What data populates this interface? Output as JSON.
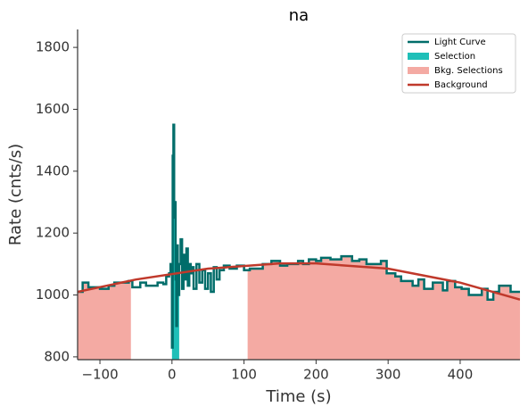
{
  "chart_data": {
    "type": "line",
    "title": "na",
    "xlabel": "Time (s)",
    "ylabel": "Rate (cnts/s)",
    "xlim": [
      -131,
      483
    ],
    "ylim": [
      791,
      1858
    ],
    "xticks": [
      {
        "value": -100,
        "label": "−100"
      },
      0,
      100,
      200,
      300,
      400
    ],
    "yticks": [
      800,
      1000,
      1200,
      1400,
      1600,
      1800
    ],
    "legend": "upper right",
    "series": [
      {
        "name": "Light Curve",
        "color": "#006d6a",
        "drawstyle": "steps-post",
        "x": [
          -131,
          -124,
          -116,
          -100,
          -88,
          -80,
          -60,
          -55,
          -44,
          -36,
          -20,
          -12,
          -8,
          -4,
          -2,
          0,
          1,
          2,
          3,
          4,
          5,
          6,
          7,
          8,
          10,
          12,
          14,
          16,
          18,
          20,
          22,
          24,
          26,
          28,
          30,
          34,
          38,
          42,
          46,
          50,
          54,
          58,
          62,
          66,
          72,
          80,
          90,
          100,
          108,
          126,
          138,
          150,
          160,
          175,
          182,
          190,
          200,
          207,
          220,
          235,
          250,
          260,
          270,
          290,
          298,
          310,
          318,
          334,
          342,
          350,
          362,
          376,
          382,
          393,
          402,
          412,
          430,
          438,
          446,
          454,
          470,
          478
        ],
        "values": [
          1010,
          1040,
          1025,
          1020,
          1030,
          1040,
          1045,
          1025,
          1040,
          1030,
          1040,
          1035,
          1060,
          1070,
          1100,
          830,
          1450,
          1550,
          1250,
          1300,
          1050,
          900,
          1160,
          1000,
          1100,
          1180,
          1020,
          1130,
          1050,
          1150,
          1030,
          1100,
          1070,
          1090,
          1020,
          1100,
          1040,
          1080,
          1020,
          1070,
          1010,
          1090,
          1050,
          1080,
          1095,
          1085,
          1095,
          1080,
          1085,
          1100,
          1110,
          1095,
          1100,
          1110,
          1100,
          1115,
          1110,
          1120,
          1115,
          1125,
          1110,
          1115,
          1100,
          1110,
          1070,
          1060,
          1045,
          1030,
          1050,
          1020,
          1040,
          1015,
          1045,
          1025,
          1020,
          1000,
          1020,
          985,
          1010,
          1030,
          1010,
          1010
        ]
      },
      {
        "name": "Background",
        "color": "#c0392b",
        "x": [
          -131,
          -50,
          50,
          150,
          200,
          300,
          400,
          483
        ],
        "values": [
          1010,
          1050,
          1085,
          1102,
          1102,
          1085,
          1040,
          985
        ]
      }
    ],
    "spans": [
      {
        "name": "Selection",
        "color": "#1fbfb8",
        "ranges": [
          [
            0,
            10
          ]
        ]
      },
      {
        "name": "Bkg. Selections",
        "color": "#f4aaa3",
        "ranges": [
          [
            -131,
            -57
          ],
          [
            105,
            483
          ]
        ]
      }
    ]
  }
}
